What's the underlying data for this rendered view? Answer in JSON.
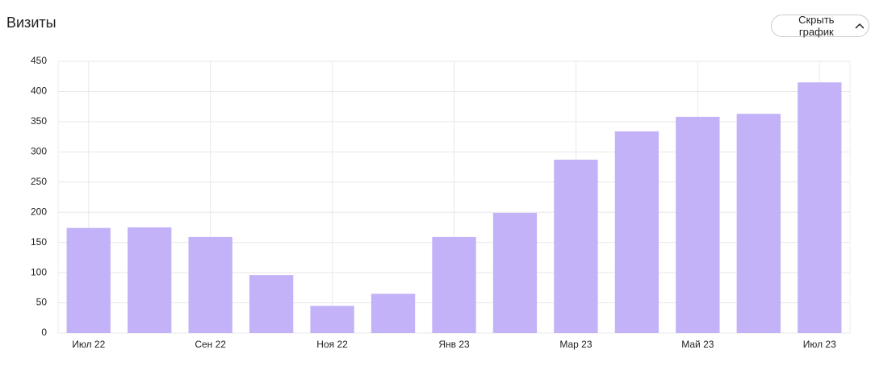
{
  "chart_data": {
    "type": "bar",
    "title": "Визиты",
    "button": "Скрыть график",
    "categories": [
      "Июл 22",
      null,
      "Сен 22",
      null,
      "Ноя 22",
      null,
      "Янв 23",
      null,
      "Мар 23",
      null,
      "Май 23",
      null,
      "Июл 23"
    ],
    "values": [
      174,
      175,
      159,
      96,
      45,
      65,
      159,
      199,
      287,
      334,
      358,
      363,
      415
    ],
    "color": "#c3b2f8",
    "ylim": [
      0,
      450
    ],
    "yticks": [
      0,
      50,
      100,
      150,
      200,
      250,
      300,
      350,
      400,
      450
    ],
    "grid": true
  }
}
